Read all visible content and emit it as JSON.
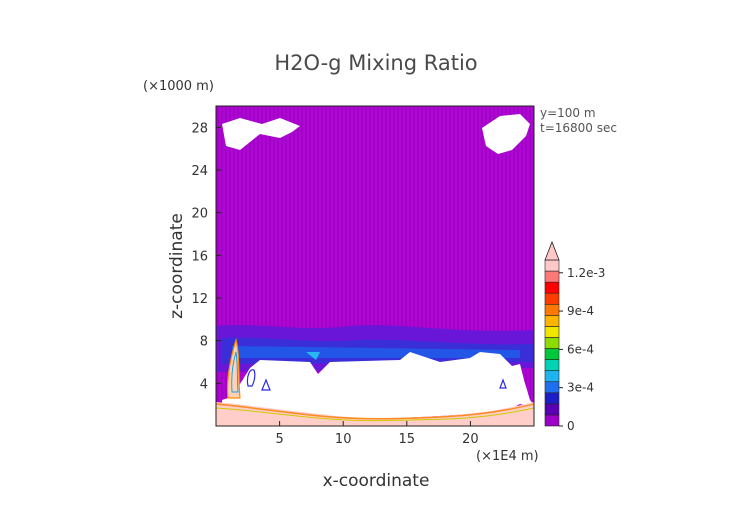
{
  "chart_data": {
    "type": "heatmap",
    "title": "H2O-g Mixing Ratio",
    "xlabel": "x-coordinate",
    "ylabel": "z-coordinate",
    "x_unit": "(×1E4 m)",
    "y_unit": "(×1000 m)",
    "annotations": [
      "y=100 m",
      "t=16800 sec"
    ],
    "xlim": [
      0,
      25
    ],
    "ylim": [
      0,
      30
    ],
    "x_ticks": [
      5,
      10,
      15,
      20
    ],
    "y_ticks": [
      4,
      8,
      12,
      16,
      20,
      24,
      28
    ],
    "colorbar": {
      "min": 0,
      "max": 0.0013,
      "tick_values": [
        0,
        0.0003,
        0.0006,
        0.0009,
        0.0012
      ],
      "tick_labels": [
        "0",
        "3e-4",
        "6e-4",
        "9e-4",
        "1.2e-3"
      ],
      "colors": [
        "#9d00c8",
        "#5a00b4",
        "#1e1ec8",
        "#1e6ef0",
        "#1eb4f0",
        "#00d2b4",
        "#00c83c",
        "#8cdc00",
        "#f0e600",
        "#ffb400",
        "#ff7800",
        "#ff3c00",
        "#ff0000",
        "#ff7878",
        "#ffc8c8"
      ]
    },
    "regions": [
      {
        "name": "background",
        "value_range": [
          0,
          8.67e-05
        ],
        "z_range": [
          0,
          30
        ]
      },
      {
        "name": "moist-band",
        "value_range": [
          0.0001,
          0.0003
        ],
        "z_range": [
          6.5,
          9
        ]
      },
      {
        "name": "no-data-white",
        "z_range": [
          1,
          6.5
        ]
      },
      {
        "name": "surface-layer",
        "value_range": [
          0.0009,
          0.0013
        ],
        "z_range": [
          0,
          1.5
        ]
      }
    ]
  }
}
